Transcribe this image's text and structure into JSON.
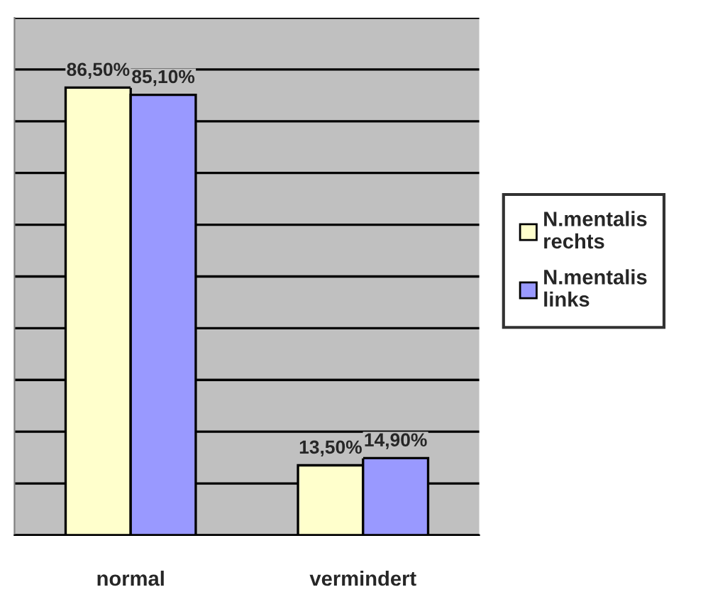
{
  "chart_data": {
    "type": "bar",
    "categories": [
      "normal",
      "vermindert"
    ],
    "series": [
      {
        "name": "N.mentalis rechts",
        "color": "#ffffcc",
        "values": [
          86.5,
          13.5
        ],
        "value_labels": [
          "86,50%",
          "13,50%"
        ]
      },
      {
        "name": "N.mentalis links",
        "color": "#9999ff",
        "values": [
          85.1,
          14.9
        ],
        "value_labels": [
          "85,10%",
          "14,90%"
        ]
      }
    ],
    "ylim": [
      0,
      100
    ],
    "yticks": [
      {
        "value": 0,
        "label": null
      },
      {
        "value": 10,
        "label": null
      },
      {
        "value": 20,
        "label": null
      },
      {
        "value": 30,
        "label": null
      },
      {
        "value": 40,
        "label": null
      },
      {
        "value": 50,
        "label": null
      },
      {
        "value": 60,
        "label": null
      },
      {
        "value": 70,
        "label": null
      },
      {
        "value": 80,
        "label": null
      },
      {
        "value": 90,
        "label": null
      },
      {
        "value": 100,
        "label": null
      }
    ],
    "grid": "y",
    "legend": "right"
  }
}
